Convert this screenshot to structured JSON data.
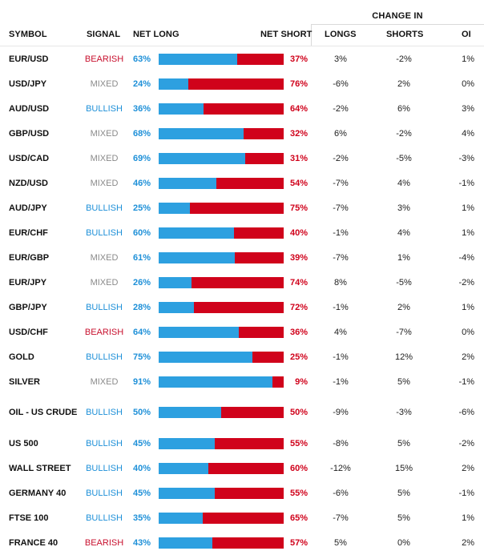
{
  "headers": {
    "change_in": "CHANGE IN",
    "symbol": "SYMBOL",
    "signal": "SIGNAL",
    "net_long": "NET LONG",
    "net_short": "NET SHORT",
    "longs": "LONGS",
    "shorts": "SHORTS",
    "oi": "OI"
  },
  "colors": {
    "long_bar": "#2da0e0",
    "short_bar": "#d0021b",
    "bearish": "#c8102e",
    "bullish": "#1e90d8",
    "mixed": "#8a8a8a"
  },
  "rows": [
    {
      "symbol": "EUR/USD",
      "signal": "BEARISH",
      "net_long": 63,
      "net_long_label": "63%",
      "net_short_label": "37%",
      "longs": "3%",
      "shorts": "-2%",
      "oi": "1%"
    },
    {
      "symbol": "USD/JPY",
      "signal": "MIXED",
      "net_long": 24,
      "net_long_label": "24%",
      "net_short_label": "76%",
      "longs": "-6%",
      "shorts": "2%",
      "oi": "0%"
    },
    {
      "symbol": "AUD/USD",
      "signal": "BULLISH",
      "net_long": 36,
      "net_long_label": "36%",
      "net_short_label": "64%",
      "longs": "-2%",
      "shorts": "6%",
      "oi": "3%"
    },
    {
      "symbol": "GBP/USD",
      "signal": "MIXED",
      "net_long": 68,
      "net_long_label": "68%",
      "net_short_label": "32%",
      "longs": "6%",
      "shorts": "-2%",
      "oi": "4%"
    },
    {
      "symbol": "USD/CAD",
      "signal": "MIXED",
      "net_long": 69,
      "net_long_label": "69%",
      "net_short_label": "31%",
      "longs": "-2%",
      "shorts": "-5%",
      "oi": "-3%"
    },
    {
      "symbol": "NZD/USD",
      "signal": "MIXED",
      "net_long": 46,
      "net_long_label": "46%",
      "net_short_label": "54%",
      "longs": "-7%",
      "shorts": "4%",
      "oi": "-1%"
    },
    {
      "symbol": "AUD/JPY",
      "signal": "BULLISH",
      "net_long": 25,
      "net_long_label": "25%",
      "net_short_label": "75%",
      "longs": "-7%",
      "shorts": "3%",
      "oi": "1%"
    },
    {
      "symbol": "EUR/CHF",
      "signal": "BULLISH",
      "net_long": 60,
      "net_long_label": "60%",
      "net_short_label": "40%",
      "longs": "-1%",
      "shorts": "4%",
      "oi": "1%"
    },
    {
      "symbol": "EUR/GBP",
      "signal": "MIXED",
      "net_long": 61,
      "net_long_label": "61%",
      "net_short_label": "39%",
      "longs": "-7%",
      "shorts": "1%",
      "oi": "-4%"
    },
    {
      "symbol": "EUR/JPY",
      "signal": "MIXED",
      "net_long": 26,
      "net_long_label": "26%",
      "net_short_label": "74%",
      "longs": "8%",
      "shorts": "-5%",
      "oi": "-2%"
    },
    {
      "symbol": "GBP/JPY",
      "signal": "BULLISH",
      "net_long": 28,
      "net_long_label": "28%",
      "net_short_label": "72%",
      "longs": "-1%",
      "shorts": "2%",
      "oi": "1%"
    },
    {
      "symbol": "USD/CHF",
      "signal": "BEARISH",
      "net_long": 64,
      "net_long_label": "64%",
      "net_short_label": "36%",
      "longs": "4%",
      "shorts": "-7%",
      "oi": "0%"
    },
    {
      "symbol": "GOLD",
      "signal": "BULLISH",
      "net_long": 75,
      "net_long_label": "75%",
      "net_short_label": "25%",
      "longs": "-1%",
      "shorts": "12%",
      "oi": "2%"
    },
    {
      "symbol": "SILVER",
      "signal": "MIXED",
      "net_long": 91,
      "net_long_label": "91%",
      "net_short_label": "9%",
      "longs": "-1%",
      "shorts": "5%",
      "oi": "-1%"
    },
    {
      "symbol": "OIL - US CRUDE",
      "signal": "BULLISH",
      "net_long": 50,
      "net_long_label": "50%",
      "net_short_label": "50%",
      "longs": "-9%",
      "shorts": "-3%",
      "oi": "-6%"
    },
    {
      "symbol": "US 500",
      "signal": "BULLISH",
      "net_long": 45,
      "net_long_label": "45%",
      "net_short_label": "55%",
      "longs": "-8%",
      "shorts": "5%",
      "oi": "-2%"
    },
    {
      "symbol": "WALL STREET",
      "signal": "BULLISH",
      "net_long": 40,
      "net_long_label": "40%",
      "net_short_label": "60%",
      "longs": "-12%",
      "shorts": "15%",
      "oi": "2%"
    },
    {
      "symbol": "GERMANY 40",
      "signal": "BULLISH",
      "net_long": 45,
      "net_long_label": "45%",
      "net_short_label": "55%",
      "longs": "-6%",
      "shorts": "5%",
      "oi": "-1%"
    },
    {
      "symbol": "FTSE 100",
      "signal": "BULLISH",
      "net_long": 35,
      "net_long_label": "35%",
      "net_short_label": "65%",
      "longs": "-7%",
      "shorts": "5%",
      "oi": "1%"
    },
    {
      "symbol": "FRANCE 40",
      "signal": "BEARISH",
      "net_long": 43,
      "net_long_label": "43%",
      "net_short_label": "57%",
      "longs": "5%",
      "shorts": "0%",
      "oi": "2%"
    }
  ]
}
